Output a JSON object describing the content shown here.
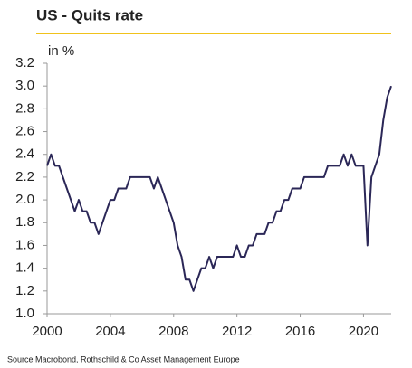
{
  "chart_data": {
    "type": "line",
    "title": "US - Quits rate",
    "ylabel": "in %",
    "source": "Source Macrobond, Rothschild & Co Asset Management Europe",
    "color": "#2b2757",
    "x": [
      2000,
      2000.25,
      2000.5,
      2000.75,
      2001,
      2001.25,
      2001.5,
      2001.75,
      2002,
      2002.25,
      2002.5,
      2002.75,
      2003,
      2003.25,
      2003.5,
      2003.75,
      2004,
      2004.25,
      2004.5,
      2004.75,
      2005,
      2005.25,
      2005.5,
      2005.75,
      2006,
      2006.25,
      2006.5,
      2006.75,
      2007,
      2007.25,
      2007.5,
      2007.75,
      2008,
      2008.25,
      2008.5,
      2008.75,
      2009,
      2009.25,
      2009.5,
      2009.75,
      2010,
      2010.25,
      2010.5,
      2010.75,
      2011,
      2011.25,
      2011.5,
      2011.75,
      2012,
      2012.25,
      2012.5,
      2012.75,
      2013,
      2013.25,
      2013.5,
      2013.75,
      2014,
      2014.25,
      2014.5,
      2014.75,
      2015,
      2015.25,
      2015.5,
      2015.75,
      2016,
      2016.25,
      2016.5,
      2016.75,
      2017,
      2017.25,
      2017.5,
      2017.75,
      2018,
      2018.25,
      2018.5,
      2018.75,
      2019,
      2019.25,
      2019.5,
      2019.75,
      2020,
      2020.25,
      2020.5,
      2020.75,
      2021,
      2021.25,
      2021.5,
      2021.75
    ],
    "values": [
      2.3,
      2.4,
      2.3,
      2.3,
      2.2,
      2.1,
      2.0,
      1.9,
      2.0,
      1.9,
      1.9,
      1.8,
      1.8,
      1.7,
      1.8,
      1.9,
      2.0,
      2.0,
      2.1,
      2.1,
      2.1,
      2.2,
      2.2,
      2.2,
      2.2,
      2.2,
      2.2,
      2.1,
      2.2,
      2.1,
      2.0,
      1.9,
      1.8,
      1.6,
      1.5,
      1.3,
      1.3,
      1.2,
      1.3,
      1.4,
      1.4,
      1.5,
      1.4,
      1.5,
      1.5,
      1.5,
      1.5,
      1.5,
      1.6,
      1.5,
      1.5,
      1.6,
      1.6,
      1.7,
      1.7,
      1.7,
      1.8,
      1.8,
      1.9,
      1.9,
      2.0,
      2.0,
      2.1,
      2.1,
      2.1,
      2.2,
      2.2,
      2.2,
      2.2,
      2.2,
      2.2,
      2.3,
      2.3,
      2.3,
      2.3,
      2.4,
      2.3,
      2.4,
      2.3,
      2.3,
      2.3,
      1.6,
      2.2,
      2.3,
      2.4,
      2.7,
      2.9,
      3.0
    ],
    "xlim": [
      2000,
      2021.75
    ],
    "xticks": [
      2000,
      2004,
      2008,
      2012,
      2016,
      2020
    ],
    "ylim": [
      1,
      3.2
    ],
    "yticks": [
      {
        "value": 1,
        "label": "1.0"
      },
      1.2,
      1.4,
      1.6,
      1.8,
      {
        "value": 2,
        "label": "2.0"
      },
      2.2,
      2.4,
      2.6,
      2.8,
      {
        "value": 3,
        "label": "3.0"
      },
      3.2
    ]
  }
}
